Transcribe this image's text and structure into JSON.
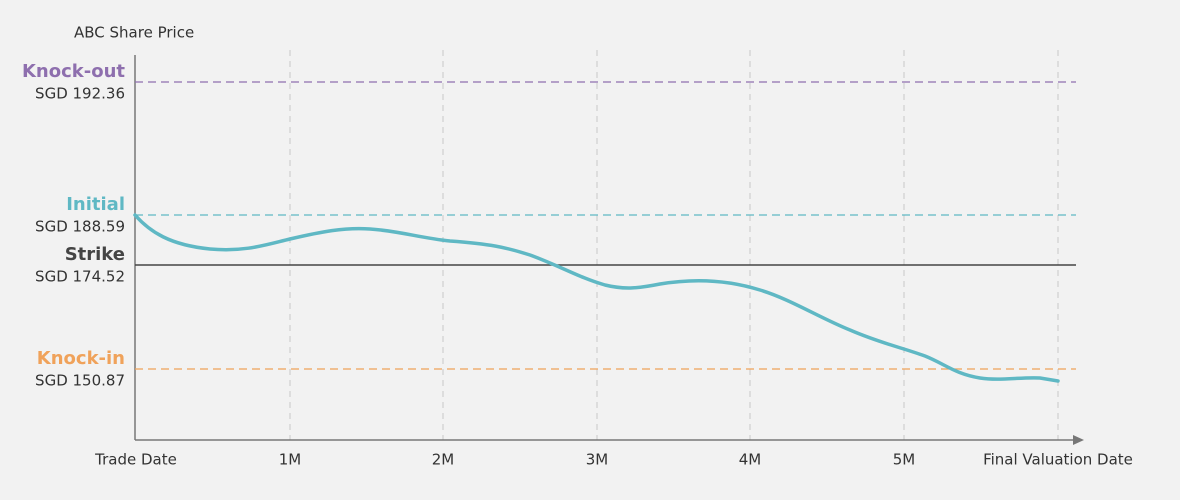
{
  "axis_title": "ABC Share Price",
  "levels": [
    {
      "name": "Knock-out",
      "price": "SGD 192.36",
      "color": "#8e6fae",
      "style": "dashed"
    },
    {
      "name": "Initial",
      "price": "SGD 188.59",
      "color": "#5fb8c4",
      "style": "dashed"
    },
    {
      "name": "Strike",
      "price": "SGD 174.52",
      "color": "#444444",
      "style": "solid"
    },
    {
      "name": "Knock-in",
      "price": "SGD 150.87",
      "color": "#f0a25a",
      "style": "dashed"
    }
  ],
  "x_labels": [
    "Trade Date",
    "1M",
    "2M",
    "3M",
    "4M",
    "5M",
    "Final Valuation Date"
  ]
}
